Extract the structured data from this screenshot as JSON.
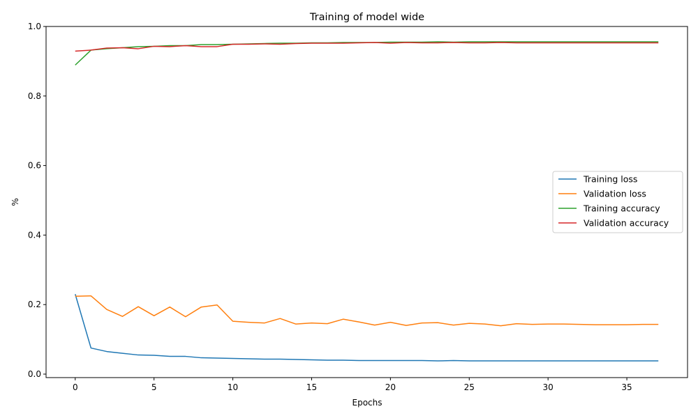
{
  "chart_data": {
    "type": "line",
    "title": "Training of model wide",
    "xlabel": "Epochs",
    "ylabel": "%",
    "xlim": [
      -1.85,
      38.85
    ],
    "ylim": [
      -0.01,
      1.0
    ],
    "xticks": [
      0,
      5,
      10,
      15,
      20,
      25,
      30,
      35
    ],
    "yticks": [
      0.0,
      0.2,
      0.4,
      0.6,
      0.8,
      1.0
    ],
    "xtick_labels": [
      "0",
      "5",
      "10",
      "15",
      "20",
      "25",
      "30",
      "35"
    ],
    "ytick_labels": [
      "0.0",
      "0.2",
      "0.4",
      "0.6",
      "0.8",
      "1.0"
    ],
    "grid": false,
    "legend_position": "center-right",
    "x": [
      0,
      1,
      2,
      3,
      4,
      5,
      6,
      7,
      8,
      9,
      10,
      11,
      12,
      13,
      14,
      15,
      16,
      17,
      18,
      19,
      20,
      21,
      22,
      23,
      24,
      25,
      26,
      27,
      28,
      29,
      30,
      31,
      32,
      33,
      34,
      35,
      36,
      37
    ],
    "series": [
      {
        "name": "Training loss",
        "color": "#1f77b4",
        "values": [
          0.23,
          0.075,
          0.065,
          0.06,
          0.055,
          0.054,
          0.051,
          0.051,
          0.047,
          0.046,
          0.045,
          0.044,
          0.043,
          0.043,
          0.042,
          0.041,
          0.04,
          0.04,
          0.039,
          0.039,
          0.039,
          0.039,
          0.039,
          0.038,
          0.039,
          0.038,
          0.038,
          0.038,
          0.038,
          0.038,
          0.038,
          0.038,
          0.038,
          0.038,
          0.038,
          0.038,
          0.038,
          0.038
        ]
      },
      {
        "name": "Validation loss",
        "color": "#ff7f0e",
        "values": [
          0.224,
          0.225,
          0.186,
          0.166,
          0.194,
          0.168,
          0.193,
          0.165,
          0.193,
          0.199,
          0.152,
          0.149,
          0.147,
          0.16,
          0.144,
          0.147,
          0.145,
          0.158,
          0.15,
          0.141,
          0.149,
          0.14,
          0.147,
          0.148,
          0.141,
          0.146,
          0.144,
          0.139,
          0.145,
          0.143,
          0.144,
          0.144,
          0.143,
          0.142,
          0.142,
          0.142,
          0.143,
          0.143
        ]
      },
      {
        "name": "Training accuracy",
        "color": "#2ca02c",
        "values": [
          0.889,
          0.932,
          0.936,
          0.939,
          0.942,
          0.943,
          0.945,
          0.945,
          0.948,
          0.948,
          0.949,
          0.95,
          0.951,
          0.952,
          0.952,
          0.953,
          0.953,
          0.954,
          0.954,
          0.954,
          0.955,
          0.955,
          0.955,
          0.956,
          0.955,
          0.956,
          0.956,
          0.956,
          0.956,
          0.956,
          0.956,
          0.956,
          0.956,
          0.956,
          0.956,
          0.956,
          0.956,
          0.956
        ]
      },
      {
        "name": "Validation accuracy",
        "color": "#d62728",
        "values": [
          0.929,
          0.932,
          0.938,
          0.939,
          0.936,
          0.943,
          0.942,
          0.945,
          0.942,
          0.942,
          0.949,
          0.949,
          0.95,
          0.949,
          0.951,
          0.952,
          0.952,
          0.952,
          0.953,
          0.954,
          0.952,
          0.954,
          0.953,
          0.953,
          0.954,
          0.953,
          0.953,
          0.954,
          0.953,
          0.953,
          0.953,
          0.953,
          0.953,
          0.953,
          0.953,
          0.953,
          0.953,
          0.953
        ]
      }
    ]
  }
}
